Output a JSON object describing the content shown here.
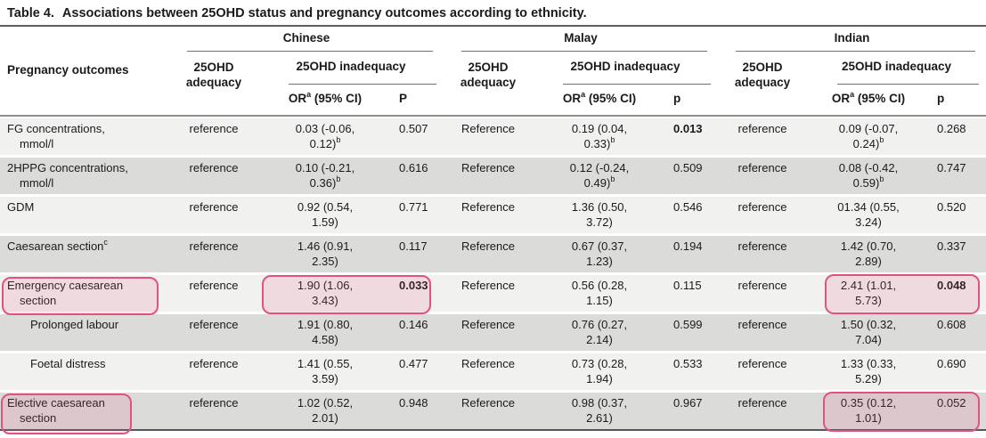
{
  "title": {
    "label": "Table 4.",
    "text": "Associations between 25OHD status and pregnancy outcomes according to ethnicity."
  },
  "header": {
    "outcome_col": "Pregnancy outcomes",
    "groups": [
      {
        "name": "Chinese",
        "adequacy": "25OHD adequacy",
        "inadequacy": "25OHD inadequacy",
        "or_label": "OR",
        "or_sup": "a",
        "or_rest": " (95% CI)",
        "p_label": "P"
      },
      {
        "name": "Malay",
        "adequacy": "25OHD adequacy",
        "inadequacy": "25OHD inadequacy",
        "or_label": "OR",
        "or_sup": "a",
        "or_rest": " (95% CI)",
        "p_label": "p"
      },
      {
        "name": "Indian",
        "adequacy": "25OHD adequacy",
        "inadequacy": "25OHD inadequacy",
        "or_label": "OR",
        "or_sup": "a",
        "or_rest": " (95% CI)",
        "p_label": "p"
      }
    ]
  },
  "rows": [
    {
      "outcome": {
        "line1": "FG concentrations,",
        "sup": "",
        "line2": "mmol/l"
      },
      "cn": {
        "ref": "reference",
        "or1": "0.03 (-0.06,",
        "or2": "0.12)",
        "or_sup": "b",
        "p": "0.507"
      },
      "my": {
        "ref": "Reference",
        "or1": "0.19 (0.04,",
        "or2": "0.33)",
        "or_sup": "b",
        "p": "0.013"
      },
      "in": {
        "ref": "reference",
        "or1": "0.09 (-0.07,",
        "or2": "0.24)",
        "or_sup": "b",
        "p": "0.268"
      }
    },
    {
      "outcome": {
        "line1": "2HPPG concentrations,",
        "sup": "",
        "line2": "mmol/l"
      },
      "cn": {
        "ref": "reference",
        "or1": "0.10 (-0.21,",
        "or2": "0.36)",
        "or_sup": "b",
        "p": "0.616"
      },
      "my": {
        "ref": "Reference",
        "or1": "0.12 (-0.24,",
        "or2": "0.49)",
        "or_sup": "b",
        "p": "0.509"
      },
      "in": {
        "ref": "reference",
        "or1": "0.08 (-0.42,",
        "or2": "0.59)",
        "or_sup": "b",
        "p": "0.747"
      }
    },
    {
      "outcome": {
        "line1": "GDM",
        "sup": "",
        "line2": ""
      },
      "cn": {
        "ref": "reference",
        "or1": "0.92 (0.54,",
        "or2": "1.59)",
        "or_sup": "",
        "p": "0.771"
      },
      "my": {
        "ref": "Reference",
        "or1": "1.36 (0.50,",
        "or2": "3.72)",
        "or_sup": "",
        "p": "0.546"
      },
      "in": {
        "ref": "reference",
        "or1": "01.34 (0.55,",
        "or2": "3.24)",
        "or_sup": "",
        "p": "0.520"
      }
    },
    {
      "outcome": {
        "line1": "Caesarean section",
        "sup": "c",
        "line2": ""
      },
      "cn": {
        "ref": "reference",
        "or1": "1.46 (0.91,",
        "or2": "2.35)",
        "or_sup": "",
        "p": "0.117"
      },
      "my": {
        "ref": "Reference",
        "or1": "0.67 (0.37,",
        "or2": "1.23)",
        "or_sup": "",
        "p": "0.194"
      },
      "in": {
        "ref": "reference",
        "or1": "1.42 (0.70,",
        "or2": "2.89)",
        "or_sup": "",
        "p": "0.337"
      }
    },
    {
      "outcome": {
        "line1": "Emergency caesarean",
        "sup": "",
        "line2": "section"
      },
      "cn": {
        "ref": "reference",
        "or1": "1.90 (1.06,",
        "or2": "3.43)",
        "or_sup": "",
        "p": "0.033"
      },
      "my": {
        "ref": "Reference",
        "or1": "0.56 (0.28,",
        "or2": "1.15)",
        "or_sup": "",
        "p": "0.115"
      },
      "in": {
        "ref": "reference",
        "or1": "2.41 (1.01,",
        "or2": "5.73)",
        "or_sup": "",
        "p": "0.048"
      }
    },
    {
      "outcome": {
        "line1": "Prolonged labour",
        "sup": "",
        "line2": ""
      },
      "cn": {
        "ref": "reference",
        "or1": "1.91 (0.80,",
        "or2": "4.58)",
        "or_sup": "",
        "p": "0.146"
      },
      "my": {
        "ref": "Reference",
        "or1": "0.76 (0.27,",
        "or2": "2.14)",
        "or_sup": "",
        "p": "0.599"
      },
      "in": {
        "ref": "reference",
        "or1": "1.50 (0.32,",
        "or2": "7.04)",
        "or_sup": "",
        "p": "0.608"
      }
    },
    {
      "outcome": {
        "line1": "Foetal distress",
        "sup": "",
        "line2": ""
      },
      "cn": {
        "ref": "reference",
        "or1": "1.41 (0.55,",
        "or2": "3.59)",
        "or_sup": "",
        "p": "0.477"
      },
      "my": {
        "ref": "Reference",
        "or1": "0.73 (0.28,",
        "or2": "1.94)",
        "or_sup": "",
        "p": "0.533"
      },
      "in": {
        "ref": "reference",
        "or1": "1.33 (0.33,",
        "or2": "5.29)",
        "or_sup": "",
        "p": "0.690"
      }
    },
    {
      "outcome": {
        "line1": "Elective caesarean",
        "sup": "",
        "line2": "section"
      },
      "cn": {
        "ref": "reference",
        "or1": "1.02 (0.52,",
        "or2": "2.01)",
        "or_sup": "",
        "p": "0.948"
      },
      "my": {
        "ref": "Reference",
        "or1": "0.98 (0.37,",
        "or2": "2.61)",
        "or_sup": "",
        "p": "0.967"
      },
      "in": {
        "ref": "reference",
        "or1": "0.35 (0.12,",
        "or2": "1.01)",
        "or_sup": "",
        "p": "0.052"
      }
    }
  ],
  "annotations": {
    "highlight_border_color": "#e0547c",
    "row_light_color": "#f1f1ef",
    "row_dark_color": "#dbdbd9",
    "bold_p_values": [
      "Malay FG 0.013",
      "Chinese Emergency caesarean 0.033",
      "Indian Emergency caesarean 0.048"
    ],
    "highlighted": [
      "Emergency caesarean section outcome label",
      "Chinese inadequacy Emergency caesarean: 1.90 (1.06, 3.43), P 0.033",
      "Indian inadequacy Emergency caesarean: 2.41 (1.01, 5.73), p 0.048",
      "Elective caesarean section outcome label",
      "Indian inadequacy Elective caesarean: 0.35 (0.12, 1.01), p 0.052"
    ]
  }
}
